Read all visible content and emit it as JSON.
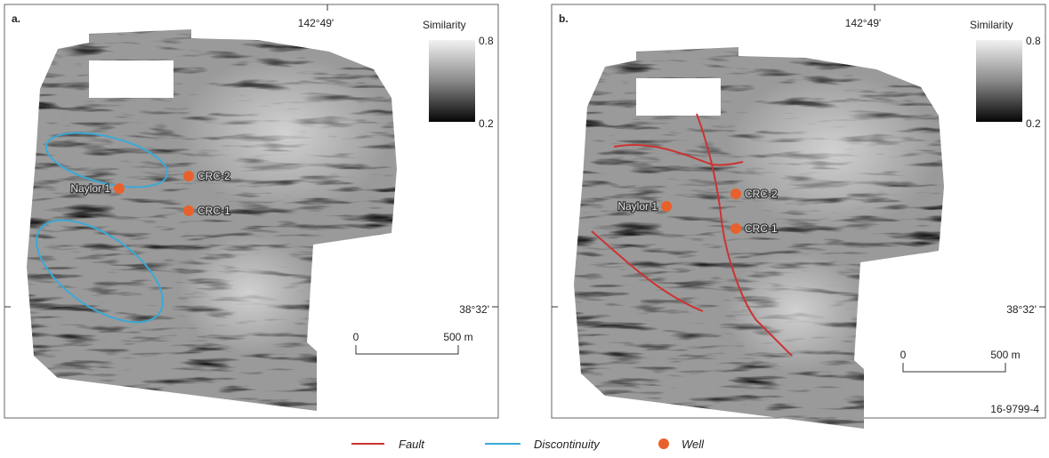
{
  "panels": [
    {
      "label": "a.",
      "longitude": "142°49'",
      "latitude": "38°32'",
      "colorbar": {
        "title": "Similarity",
        "max": "0.8",
        "min": "0.2"
      },
      "scale_bar": {
        "start": "0",
        "end": "500 m"
      },
      "wells": [
        "Naylor 1",
        "CRC-2",
        "CRC-1"
      ]
    },
    {
      "label": "b.",
      "longitude": "142°49'",
      "latitude": "38°32'",
      "colorbar": {
        "title": "Similarity",
        "max": "0.8",
        "min": "0.2"
      },
      "scale_bar": {
        "start": "0",
        "end": "500 m"
      },
      "wells": [
        "Naylor 1",
        "CRC-2",
        "CRC-1"
      ]
    }
  ],
  "figure_id": "16-9799-4",
  "legend": [
    "Fault",
    "Discontinuity",
    "Well"
  ]
}
